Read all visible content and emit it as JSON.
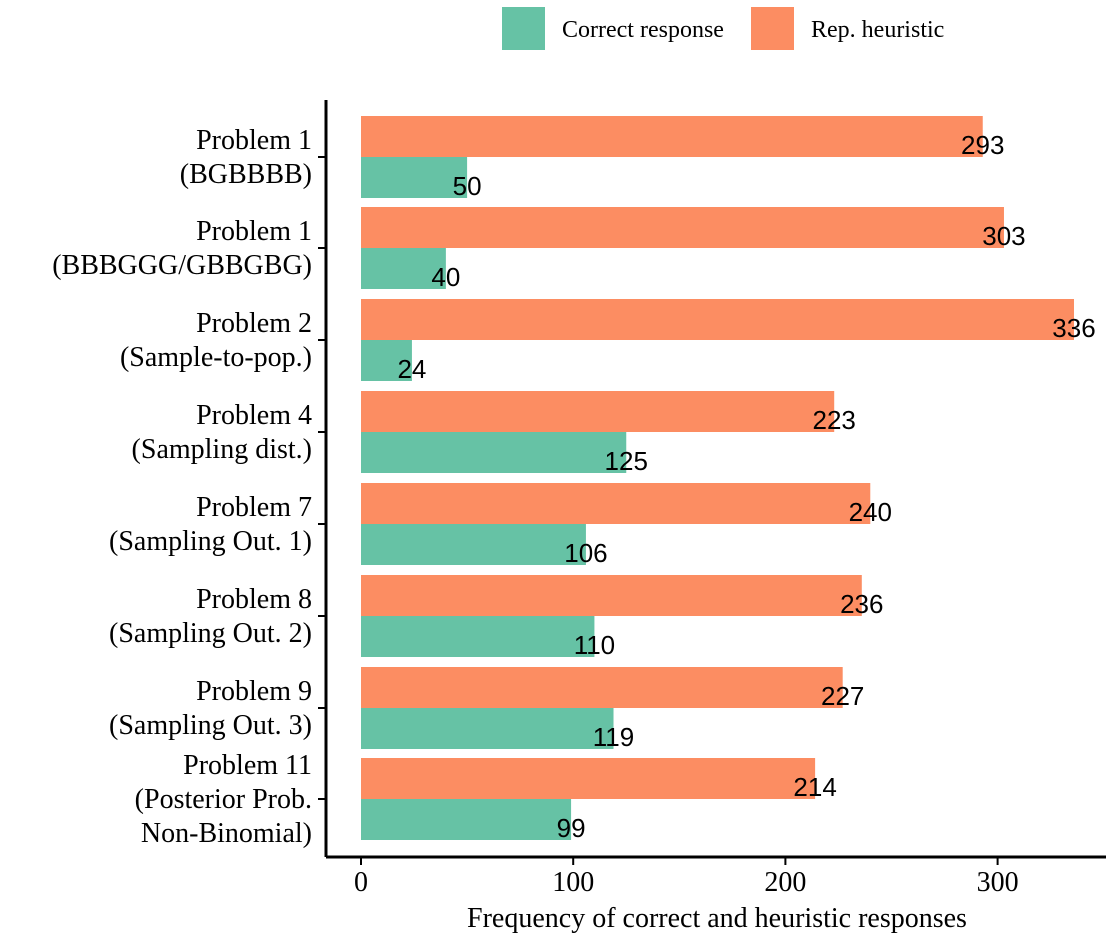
{
  "chart_data": {
    "type": "bar",
    "orientation": "horizontal",
    "categories": [
      [
        "Problem 1",
        "(BGBBBB)"
      ],
      [
        "Problem 1",
        "(BBBGGG/GBBGBG)"
      ],
      [
        "Problem 2",
        "(Sample-to-pop.)"
      ],
      [
        "Problem 4",
        "(Sampling dist.)"
      ],
      [
        "Problem 7",
        "(Sampling Out. 1)"
      ],
      [
        "Problem 8",
        "(Sampling Out. 2)"
      ],
      [
        "Problem 9",
        "(Sampling Out. 3)"
      ],
      [
        "Problem 11",
        "(Posterior Prob.",
        "Non-Binomial)"
      ]
    ],
    "series": [
      {
        "name": "Correct response",
        "color": "#66c2a5",
        "values": [
          50,
          40,
          24,
          125,
          106,
          110,
          119,
          99
        ]
      },
      {
        "name": "Rep. heuristic",
        "color": "#fc8d62",
        "values": [
          293,
          303,
          336,
          223,
          240,
          236,
          227,
          214
        ]
      }
    ],
    "xlabel": "Frequency of correct and heuristic responses",
    "ylabel": "",
    "xlim": [
      0,
      350
    ],
    "xticks": [
      0,
      100,
      200,
      300
    ],
    "grid": false,
    "legend_position": "top"
  }
}
